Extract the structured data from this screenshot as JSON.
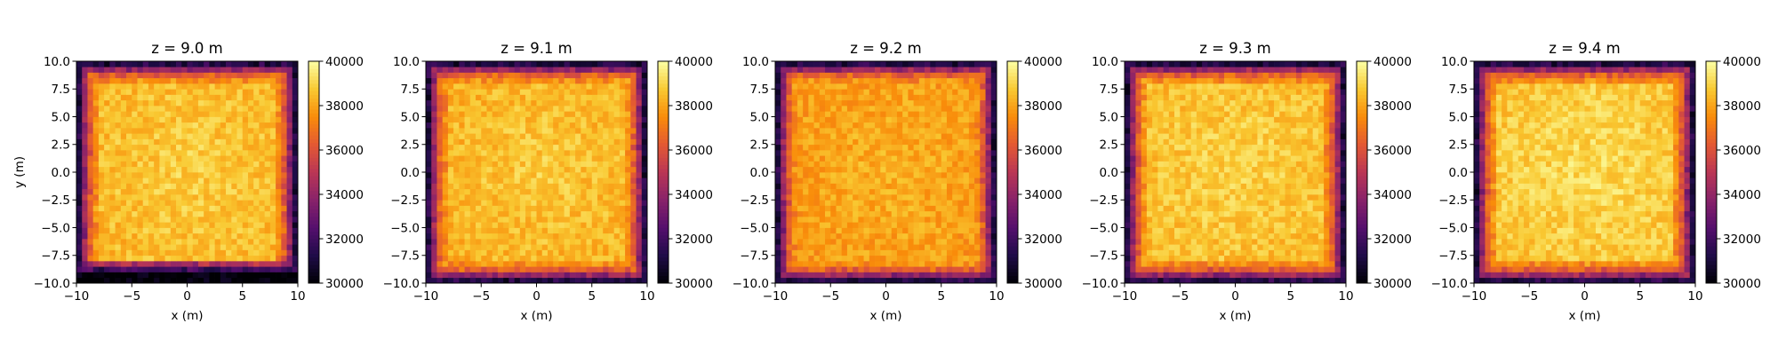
{
  "chart_data": [
    {
      "type": "heatmap",
      "title": "z = 9.0 m",
      "xlabel": "x (m)",
      "ylabel": "y (m)",
      "xlim": [
        -10,
        10
      ],
      "ylim": [
        -10,
        10
      ],
      "x_ticks": [
        "−10",
        "−5",
        "0",
        "5",
        "10"
      ],
      "y_ticks": [
        "10.0",
        "7.5",
        "5.0",
        "2.5",
        "0.0",
        "−2.5",
        "−5.0",
        "−7.5",
        "−10.0"
      ],
      "colormap": "inferno",
      "clim": [
        30000,
        40000
      ],
      "colorbar_ticks": [
        "40000",
        "38000",
        "36000",
        "34000",
        "32000",
        "30000"
      ],
      "grid_size": [
        40,
        40
      ],
      "center_value": 38900,
      "dark_bottom_band": true
    },
    {
      "type": "heatmap",
      "title": "z = 9.1 m",
      "xlabel": "x (m)",
      "ylabel": "",
      "xlim": [
        -10,
        10
      ],
      "ylim": [
        -10,
        10
      ],
      "x_ticks": [
        "−10",
        "−5",
        "0",
        "5",
        "10"
      ],
      "y_ticks": [
        "10.0",
        "7.5",
        "5.0",
        "2.5",
        "0.0",
        "−2.5",
        "−5.0",
        "−7.5",
        "−10.0"
      ],
      "colormap": "inferno",
      "clim": [
        30000,
        40000
      ],
      "colorbar_ticks": [
        "40000",
        "38000",
        "36000",
        "34000",
        "32000",
        "30000"
      ],
      "grid_size": [
        40,
        40
      ],
      "center_value": 38800,
      "dark_bottom_band": false
    },
    {
      "type": "heatmap",
      "title": "z = 9.2 m",
      "xlabel": "x (m)",
      "ylabel": "",
      "xlim": [
        -10,
        10
      ],
      "ylim": [
        -10,
        10
      ],
      "x_ticks": [
        "−10",
        "−5",
        "0",
        "5",
        "10"
      ],
      "y_ticks": [
        "10.0",
        "7.5",
        "5.0",
        "2.5",
        "0.0",
        "−2.5",
        "−5.0",
        "−7.5",
        "−10.0"
      ],
      "colormap": "inferno",
      "clim": [
        30000,
        40000
      ],
      "colorbar_ticks": [
        "40000",
        "38000",
        "36000",
        "34000",
        "32000",
        "30000"
      ],
      "grid_size": [
        40,
        40
      ],
      "center_value": 38300,
      "dark_bottom_band": false
    },
    {
      "type": "heatmap",
      "title": "z = 9.3 m",
      "xlabel": "x (m)",
      "ylabel": "",
      "xlim": [
        -10,
        10
      ],
      "ylim": [
        -10,
        10
      ],
      "x_ticks": [
        "−10",
        "−5",
        "0",
        "5",
        "10"
      ],
      "y_ticks": [
        "10.0",
        "7.5",
        "5.0",
        "2.5",
        "0.0",
        "−2.5",
        "−5.0",
        "−7.5",
        "−10.0"
      ],
      "colormap": "inferno",
      "clim": [
        30000,
        40000
      ],
      "colorbar_ticks": [
        "40000",
        "38000",
        "36000",
        "34000",
        "32000",
        "30000"
      ],
      "grid_size": [
        40,
        40
      ],
      "center_value": 39000,
      "dark_bottom_band": false
    },
    {
      "type": "heatmap",
      "title": "z = 9.4 m",
      "xlabel": "x (m)",
      "ylabel": "",
      "xlim": [
        -10,
        10
      ],
      "ylim": [
        -10,
        10
      ],
      "x_ticks": [
        "−10",
        "−5",
        "0",
        "5",
        "10"
      ],
      "y_ticks": [
        "10.0",
        "7.5",
        "5.0",
        "2.5",
        "0.0",
        "−2.5",
        "−5.0",
        "−7.5",
        "−10.0"
      ],
      "colormap": "inferno",
      "clim": [
        30000,
        40000
      ],
      "colorbar_ticks": [
        "40000",
        "38000",
        "36000",
        "34000",
        "32000",
        "30000"
      ],
      "grid_size": [
        40,
        40
      ],
      "center_value": 39200,
      "dark_bottom_band": false
    }
  ]
}
